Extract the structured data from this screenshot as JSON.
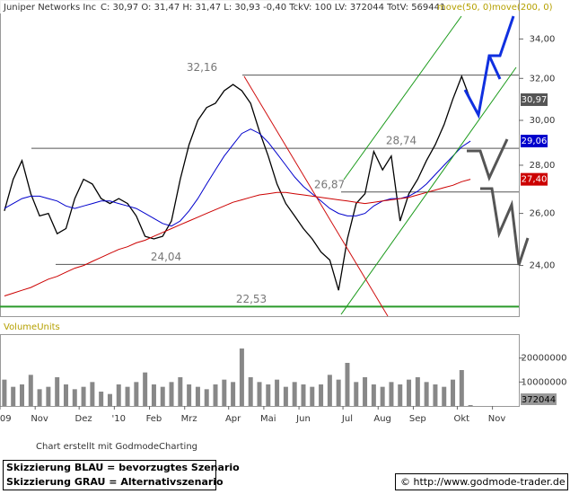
{
  "chart_data": [
    {
      "type": "line",
      "title": "Juniper Networks Inc",
      "subtitle": "C: 30,97 O: 31,47 H: 31,47 L: 30,93 -0,40 TckV: 100 LV: 372044 TotV: 569441",
      "log_scale": true,
      "ylim": [
        22.2,
        36.1
      ],
      "yticks": [
        {
          "value": 24,
          "label": "24,00"
        },
        {
          "value": 26,
          "label": "26,00"
        },
        {
          "value": 28,
          "label": "28,00"
        },
        {
          "value": 30,
          "label": "30,00"
        },
        {
          "value": 32,
          "label": "32,00"
        },
        {
          "value": 34,
          "label": "34,00"
        }
      ],
      "series": [
        {
          "color": "#000000",
          "last_label": "30,97",
          "values": [
            26.1,
            27.4,
            28.2,
            26.8,
            25.9,
            26.0,
            25.2,
            25.4,
            26.6,
            27.4,
            27.2,
            26.6,
            26.4,
            26.6,
            26.4,
            25.9,
            25.1,
            25.0,
            25.1,
            25.7,
            27.4,
            28.9,
            30.0,
            30.6,
            30.8,
            31.4,
            31.7,
            31.4,
            30.8,
            29.5,
            28.4,
            27.2,
            26.4,
            25.9,
            25.4,
            25.0,
            24.5,
            24.2,
            23.1,
            25.0,
            26.4,
            26.8,
            28.6,
            27.8,
            28.4,
            25.7,
            26.8,
            27.4,
            28.2,
            28.9,
            29.8,
            31.0,
            32.1,
            30.97,
            null,
            null,
            null,
            null,
            null
          ]
        },
        {
          "name": "move(50, 0)",
          "color": "#0000cc",
          "last_label": "29,06",
          "values": [
            26.2,
            26.4,
            26.6,
            26.7,
            26.7,
            26.6,
            26.5,
            26.3,
            26.2,
            26.3,
            26.4,
            26.5,
            26.5,
            26.4,
            26.3,
            26.2,
            26.0,
            25.8,
            25.6,
            25.5,
            25.7,
            26.1,
            26.6,
            27.2,
            27.8,
            28.4,
            28.9,
            29.4,
            29.6,
            29.4,
            29.0,
            28.5,
            28.0,
            27.5,
            27.1,
            26.8,
            26.5,
            26.2,
            26.0,
            25.9,
            25.9,
            26.0,
            26.3,
            26.5,
            26.6,
            26.6,
            26.7,
            26.9,
            27.2,
            27.6,
            28.0,
            28.4,
            28.8,
            29.06,
            null,
            null,
            null,
            null,
            null
          ]
        },
        {
          "name": "move(200, 0)",
          "color": "#cc0000",
          "last_label": "27,40",
          "values": [
            22.9,
            23.0,
            23.1,
            23.2,
            23.35,
            23.5,
            23.6,
            23.75,
            23.9,
            24.0,
            24.15,
            24.3,
            24.45,
            24.6,
            24.7,
            24.85,
            24.95,
            25.1,
            25.25,
            25.4,
            25.55,
            25.7,
            25.85,
            26.0,
            26.15,
            26.3,
            26.45,
            26.55,
            26.65,
            26.75,
            26.8,
            26.85,
            26.85,
            26.8,
            26.75,
            26.7,
            26.65,
            26.6,
            26.55,
            26.5,
            26.45,
            26.4,
            26.45,
            26.5,
            26.55,
            26.6,
            26.65,
            26.75,
            26.85,
            26.95,
            27.05,
            27.15,
            27.3,
            27.4,
            null,
            null,
            null,
            null,
            null
          ]
        }
      ],
      "annotations": [
        {
          "value": 32.16,
          "label": "32,16"
        },
        {
          "value": 28.74,
          "label": "28,74"
        },
        {
          "value": 26.87,
          "label": "26,87"
        },
        {
          "value": 24.04,
          "label": "24,04"
        },
        {
          "value": 22.53,
          "label": "22,53"
        }
      ]
    },
    {
      "type": "bar",
      "title": "VolumeUnits",
      "color": "#888888",
      "categories": [
        "'09",
        null,
        null,
        null,
        "Nov",
        null,
        null,
        null,
        null,
        "Dez",
        null,
        null,
        null,
        "'10",
        null,
        null,
        null,
        "Feb",
        null,
        null,
        null,
        "Mrz",
        null,
        null,
        null,
        null,
        "Apr",
        null,
        null,
        null,
        "Mai",
        null,
        null,
        null,
        "Jun",
        null,
        null,
        null,
        null,
        "Jul",
        null,
        null,
        null,
        "Aug",
        null,
        null,
        null,
        "Sep",
        null,
        null,
        null,
        null,
        "Okt",
        null,
        null,
        null,
        "Nov",
        null,
        null
      ],
      "values": [
        11000000,
        8000000,
        9000000,
        13000000,
        7000000,
        8000000,
        12000000,
        9000000,
        7000000,
        8000000,
        10000000,
        6000000,
        5000000,
        9000000,
        8000000,
        10000000,
        14000000,
        9000000,
        8000000,
        10000000,
        12000000,
        9000000,
        8000000,
        7000000,
        9000000,
        11000000,
        10000000,
        24000000,
        12000000,
        10000000,
        9000000,
        11000000,
        8000000,
        10000000,
        9000000,
        8000000,
        9000000,
        13000000,
        11000000,
        18000000,
        10000000,
        12000000,
        9000000,
        8000000,
        10000000,
        9000000,
        11000000,
        12000000,
        10000000,
        9000000,
        8000000,
        11000000,
        15000000,
        372044,
        null,
        null,
        null,
        null,
        null
      ],
      "ylim": [
        0,
        30000000
      ],
      "yticks": [
        10000000,
        20000000
      ]
    }
  ],
  "footer": {
    "credit": "Chart erstellt mit GodmodeCharting",
    "note_blue": "Skizzierung BLAU = bevorzugtes Szenario",
    "note_gray": "Skizzierung GRAU = Alternativszenario",
    "source": "© http://www.godmode-trader.de"
  }
}
